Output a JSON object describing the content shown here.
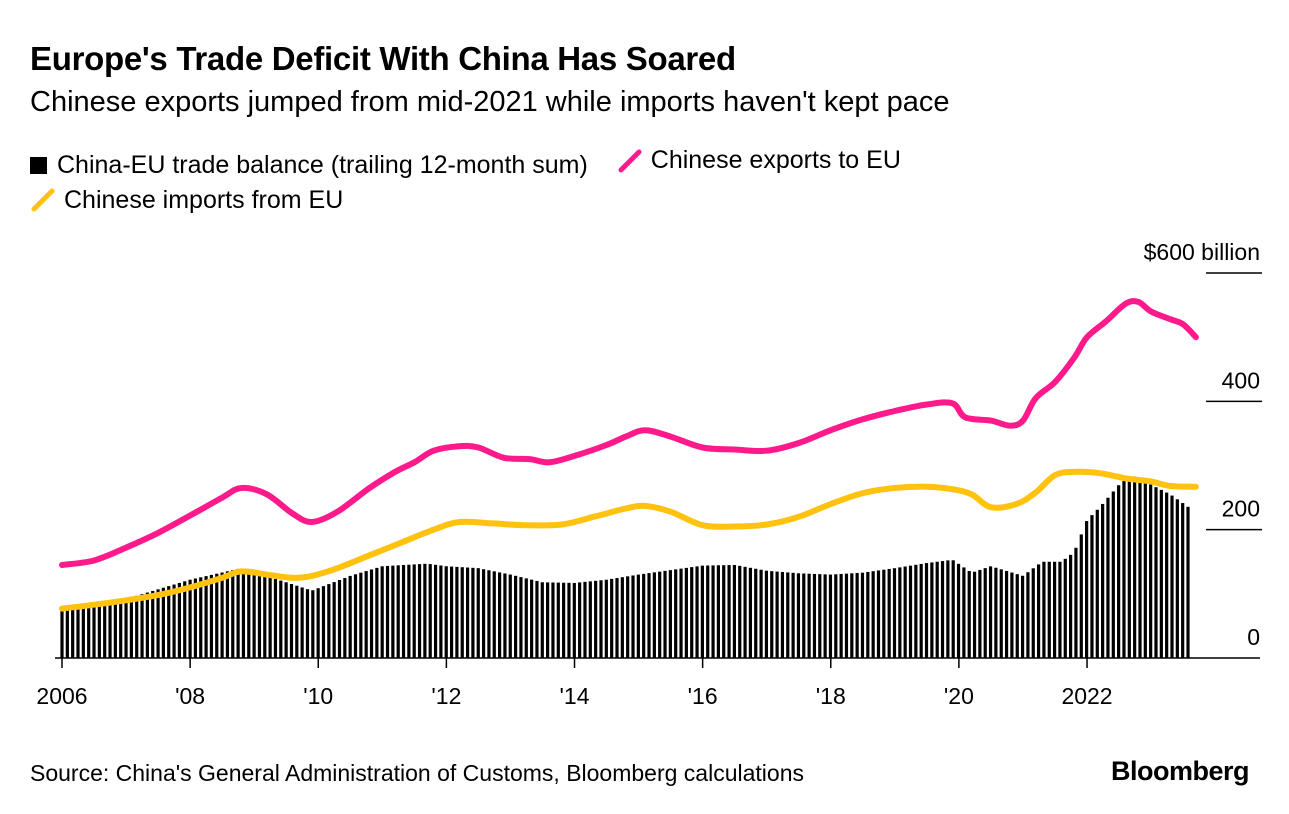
{
  "title": "Europe's Trade Deficit With China Has Soared",
  "subtitle": "Chinese exports jumped from mid-2021 while imports haven't kept pace",
  "legend": {
    "balance": "China-EU trade balance (trailing 12-month sum)",
    "exports": "Chinese exports to EU",
    "imports": "Chinese imports from EU"
  },
  "source": "Source: China's General Administration of Customs, Bloomberg calculations",
  "brand": "Bloomberg",
  "colors": {
    "balance": "#000000",
    "exports": "#ff1a8c",
    "imports": "#ffc20e",
    "axis": "#000000"
  },
  "chart_data": {
    "type": "bar+line",
    "title": "Europe's Trade Deficit With China Has Soared",
    "xlabel": "",
    "ylabel": "",
    "xlim": [
      2006.0,
      2024.7
    ],
    "ylim": [
      0,
      600
    ],
    "y_ticks": [
      {
        "value": 600,
        "label": "$600 billion"
      },
      {
        "value": 400,
        "label": "400"
      },
      {
        "value": 200,
        "label": "200"
      },
      {
        "value": 0,
        "label": "0"
      }
    ],
    "x_ticks": [
      {
        "value": 2006,
        "label": "2006"
      },
      {
        "value": 2008,
        "label": "'08"
      },
      {
        "value": 2010,
        "label": "'10"
      },
      {
        "value": 2012,
        "label": "'12"
      },
      {
        "value": 2014,
        "label": "'14"
      },
      {
        "value": 2016,
        "label": "'16"
      },
      {
        "value": 2018,
        "label": "'18"
      },
      {
        "value": 2020,
        "label": "'20"
      },
      {
        "value": 2022,
        "label": "2022"
      }
    ],
    "bar_series": {
      "name": "China-EU trade balance (trailing 12-month sum)",
      "step_years": 0.0833,
      "anchors": [
        [
          2006.0,
          75
        ],
        [
          2007.0,
          92
        ],
        [
          2008.0,
          122
        ],
        [
          2008.8,
          140
        ],
        [
          2009.5,
          118
        ],
        [
          2009.9,
          105
        ],
        [
          2010.5,
          128
        ],
        [
          2011.0,
          143
        ],
        [
          2011.7,
          147
        ],
        [
          2012.0,
          143
        ],
        [
          2012.5,
          140
        ],
        [
          2013.0,
          130
        ],
        [
          2013.5,
          118
        ],
        [
          2014.0,
          117
        ],
        [
          2014.5,
          122
        ],
        [
          2015.0,
          130
        ],
        [
          2015.5,
          137
        ],
        [
          2016.0,
          144
        ],
        [
          2016.5,
          145
        ],
        [
          2017.0,
          136
        ],
        [
          2017.5,
          132
        ],
        [
          2018.0,
          130
        ],
        [
          2018.5,
          133
        ],
        [
          2019.0,
          140
        ],
        [
          2019.5,
          148
        ],
        [
          2019.9,
          153
        ],
        [
          2020.2,
          133
        ],
        [
          2020.5,
          143
        ],
        [
          2020.8,
          134
        ],
        [
          2021.0,
          128
        ],
        [
          2021.3,
          150
        ],
        [
          2021.6,
          150
        ],
        [
          2021.8,
          165
        ],
        [
          2022.0,
          215
        ],
        [
          2022.2,
          235
        ],
        [
          2022.5,
          270
        ],
        [
          2022.7,
          285
        ],
        [
          2023.0,
          270
        ],
        [
          2023.3,
          255
        ],
        [
          2023.6,
          234
        ]
      ]
    },
    "series": [
      {
        "name": "Chinese exports to EU",
        "color": "#ff1a8c",
        "points": [
          [
            2006.0,
            145
          ],
          [
            2006.5,
            152
          ],
          [
            2007.0,
            172
          ],
          [
            2007.5,
            195
          ],
          [
            2008.0,
            222
          ],
          [
            2008.5,
            250
          ],
          [
            2008.8,
            265
          ],
          [
            2009.2,
            255
          ],
          [
            2009.6,
            225
          ],
          [
            2009.9,
            212
          ],
          [
            2010.3,
            228
          ],
          [
            2010.8,
            265
          ],
          [
            2011.2,
            290
          ],
          [
            2011.5,
            305
          ],
          [
            2011.8,
            323
          ],
          [
            2012.2,
            330
          ],
          [
            2012.5,
            328
          ],
          [
            2012.9,
            312
          ],
          [
            2013.3,
            310
          ],
          [
            2013.6,
            305
          ],
          [
            2014.0,
            315
          ],
          [
            2014.5,
            332
          ],
          [
            2014.8,
            345
          ],
          [
            2015.1,
            355
          ],
          [
            2015.5,
            345
          ],
          [
            2016.0,
            328
          ],
          [
            2016.5,
            325
          ],
          [
            2017.0,
            323
          ],
          [
            2017.5,
            335
          ],
          [
            2018.0,
            355
          ],
          [
            2018.5,
            372
          ],
          [
            2019.0,
            385
          ],
          [
            2019.5,
            395
          ],
          [
            2019.9,
            397
          ],
          [
            2020.1,
            375
          ],
          [
            2020.5,
            370
          ],
          [
            2020.8,
            362
          ],
          [
            2021.0,
            370
          ],
          [
            2021.2,
            405
          ],
          [
            2021.5,
            430
          ],
          [
            2021.8,
            468
          ],
          [
            2022.0,
            500
          ],
          [
            2022.3,
            525
          ],
          [
            2022.6,
            552
          ],
          [
            2022.8,
            555
          ],
          [
            2023.0,
            540
          ],
          [
            2023.3,
            528
          ],
          [
            2023.5,
            520
          ],
          [
            2023.7,
            500
          ]
        ]
      },
      {
        "name": "Chinese imports from EU",
        "color": "#ffc20e",
        "points": [
          [
            2006.0,
            77
          ],
          [
            2006.5,
            83
          ],
          [
            2007.0,
            90
          ],
          [
            2007.5,
            98
          ],
          [
            2008.0,
            110
          ],
          [
            2008.5,
            125
          ],
          [
            2008.8,
            135
          ],
          [
            2009.2,
            130
          ],
          [
            2009.6,
            125
          ],
          [
            2009.9,
            128
          ],
          [
            2010.3,
            140
          ],
          [
            2010.8,
            160
          ],
          [
            2011.3,
            180
          ],
          [
            2011.8,
            200
          ],
          [
            2012.2,
            212
          ],
          [
            2012.7,
            210
          ],
          [
            2013.2,
            207
          ],
          [
            2013.8,
            208
          ],
          [
            2014.3,
            220
          ],
          [
            2014.8,
            233
          ],
          [
            2015.1,
            237
          ],
          [
            2015.5,
            228
          ],
          [
            2016.0,
            207
          ],
          [
            2016.5,
            205
          ],
          [
            2017.0,
            208
          ],
          [
            2017.5,
            220
          ],
          [
            2018.0,
            240
          ],
          [
            2018.5,
            257
          ],
          [
            2019.0,
            265
          ],
          [
            2019.5,
            267
          ],
          [
            2019.9,
            263
          ],
          [
            2020.2,
            255
          ],
          [
            2020.5,
            235
          ],
          [
            2020.9,
            240
          ],
          [
            2021.2,
            258
          ],
          [
            2021.5,
            285
          ],
          [
            2021.8,
            290
          ],
          [
            2022.2,
            288
          ],
          [
            2022.6,
            280
          ],
          [
            2023.0,
            275
          ],
          [
            2023.3,
            268
          ],
          [
            2023.7,
            267
          ]
        ]
      }
    ]
  }
}
